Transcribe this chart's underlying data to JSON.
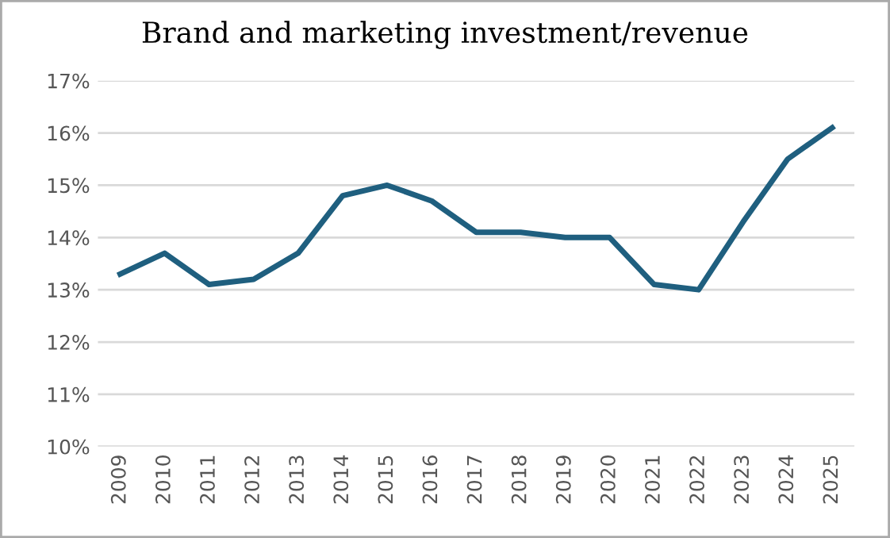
{
  "chart_data": {
    "type": "line",
    "title": "Brand and marketing investment/revenue",
    "categories": [
      "2009",
      "2010",
      "2011",
      "2012",
      "2013",
      "2014",
      "2015",
      "2016",
      "2017",
      "2018",
      "2019",
      "2020",
      "2021",
      "2022",
      "2023",
      "2024",
      "2025"
    ],
    "series": [
      {
        "color": "#1f5f7f",
        "values": [
          13.3,
          13.7,
          13.1,
          13.2,
          13.7,
          14.8,
          15.0,
          14.7,
          14.1,
          14.1,
          14.0,
          14.0,
          13.1,
          13.0,
          14.3,
          15.5,
          16.1
        ]
      }
    ],
    "ylim": [
      10,
      17
    ],
    "yticks": [
      {
        "value": 10,
        "label": "10%"
      },
      {
        "value": 11,
        "label": "11%"
      },
      {
        "value": 12,
        "label": "12%"
      },
      {
        "value": 13,
        "label": "13%"
      },
      {
        "value": 14,
        "label": "14%"
      },
      {
        "value": 15,
        "label": "15%"
      },
      {
        "value": 16,
        "label": "16%"
      },
      {
        "value": 17,
        "label": "17%"
      }
    ],
    "grid": "y",
    "marker": "none",
    "line_style": "solid",
    "legend": false
  }
}
